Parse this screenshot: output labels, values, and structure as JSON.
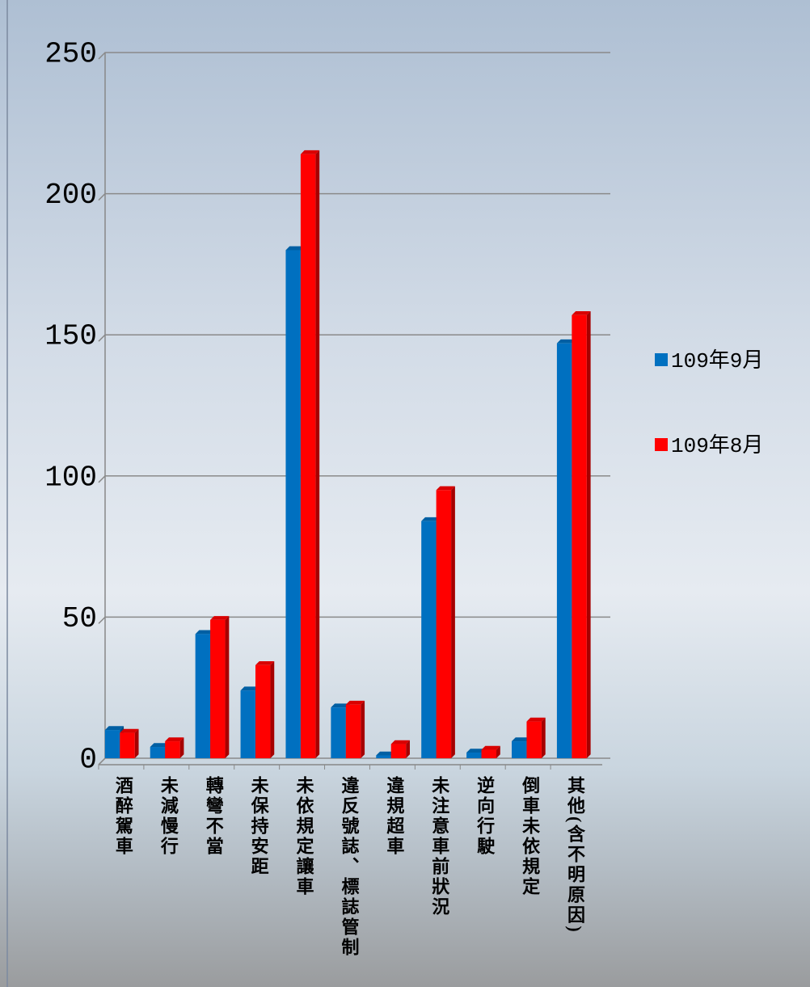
{
  "chart_data": {
    "type": "bar",
    "categories": [
      "酒醉駕車",
      "未減慢行",
      "轉彎不當",
      "未保持安距",
      "未依規定讓車",
      "違反號誌、標誌管制",
      "違規超車",
      "未注意車前狀況",
      "逆向行駛",
      "倒車未依規定",
      "其他(含不明原因)"
    ],
    "series": [
      {
        "name": "109年9月",
        "color": "#0070c0",
        "values": [
          10,
          4,
          44,
          24,
          180,
          18,
          1,
          84,
          2,
          6,
          147
        ]
      },
      {
        "name": "109年8月",
        "color": "#ff0000",
        "values": [
          9,
          6,
          49,
          33,
          214,
          19,
          5,
          95,
          3,
          13,
          157
        ]
      }
    ],
    "ylim": [
      0,
      250
    ],
    "yticks": [
      0,
      50,
      100,
      150,
      200,
      250
    ],
    "grid": true,
    "legend": "right"
  }
}
